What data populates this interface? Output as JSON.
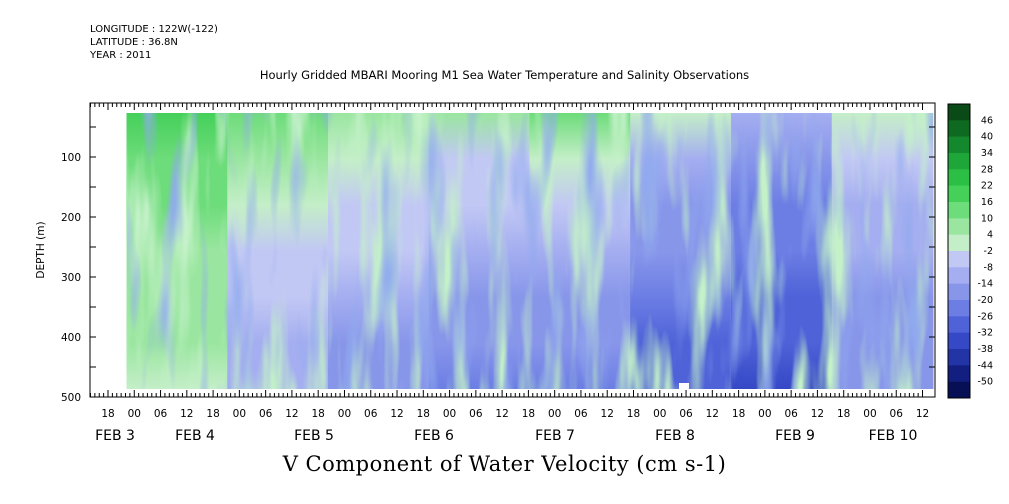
{
  "header": {
    "longitude": "LONGITUDE : 122W(-122)",
    "latitude": "LATITUDE : 36.8N",
    "year": "YEAR : 2011"
  },
  "chart_data": {
    "type": "heatmap",
    "title": "Hourly Gridded MBARI Mooring M1 Sea Water Temperature and Salinity Observations",
    "xlabel": "V Component of Water Velocity (cm s-1)",
    "ylabel": "DEPTH (m)",
    "y_ticks": [
      100,
      200,
      300,
      400,
      500
    ],
    "ylim": [
      500,
      10
    ],
    "hour_tick_labels": [
      "18",
      "00",
      "06",
      "12",
      "18",
      "00",
      "06",
      "12",
      "18",
      "00",
      "06",
      "12",
      "18",
      "00",
      "06",
      "12",
      "18",
      "00",
      "06",
      "12",
      "18",
      "00",
      "06",
      "12",
      "18",
      "00",
      "06",
      "12",
      "18",
      "00",
      "06",
      "12"
    ],
    "day_labels": [
      "FEB  3",
      "FEB  4",
      "FEB  5",
      "FEB  6",
      "FEB  7",
      "FEB  8",
      "FEB  9",
      "FEB 10"
    ],
    "colorbar": {
      "levels": [
        46,
        40,
        34,
        28,
        22,
        16,
        10,
        4,
        -2,
        -8,
        -14,
        -20,
        -26,
        -32,
        -38,
        -44,
        -50
      ],
      "colors": [
        "#0a4a17",
        "#0d6a20",
        "#14882c",
        "#1fa638",
        "#2cbf45",
        "#45d05a",
        "#6ddc7a",
        "#9ae6a0",
        "#c4eec8",
        "#c2c8f4",
        "#a4aef0",
        "#8896ea",
        "#6c7ee4",
        "#4f62d8",
        "#3548c6",
        "#2234a6",
        "#121f80",
        "#070f55"
      ]
    },
    "v_velocity_pattern": {
      "description_units": "cm s-1",
      "day_columns": [
        {
          "label": "FEB 3",
          "surface": 25,
          "deep": 8
        },
        {
          "label": "FEB 4",
          "surface": 20,
          "deep": -6
        },
        {
          "label": "FEB 5",
          "surface": 15,
          "deep": -12
        },
        {
          "label": "FEB 6",
          "surface": 10,
          "deep": -15
        },
        {
          "label": "FEB 7",
          "surface": 18,
          "deep": -18
        },
        {
          "label": "FEB 8",
          "surface": 5,
          "deep": -24
        },
        {
          "label": "FEB 9",
          "surface": -4,
          "deep": -28
        },
        {
          "label": "FEB 10",
          "surface": 4,
          "deep": -14
        }
      ]
    }
  }
}
